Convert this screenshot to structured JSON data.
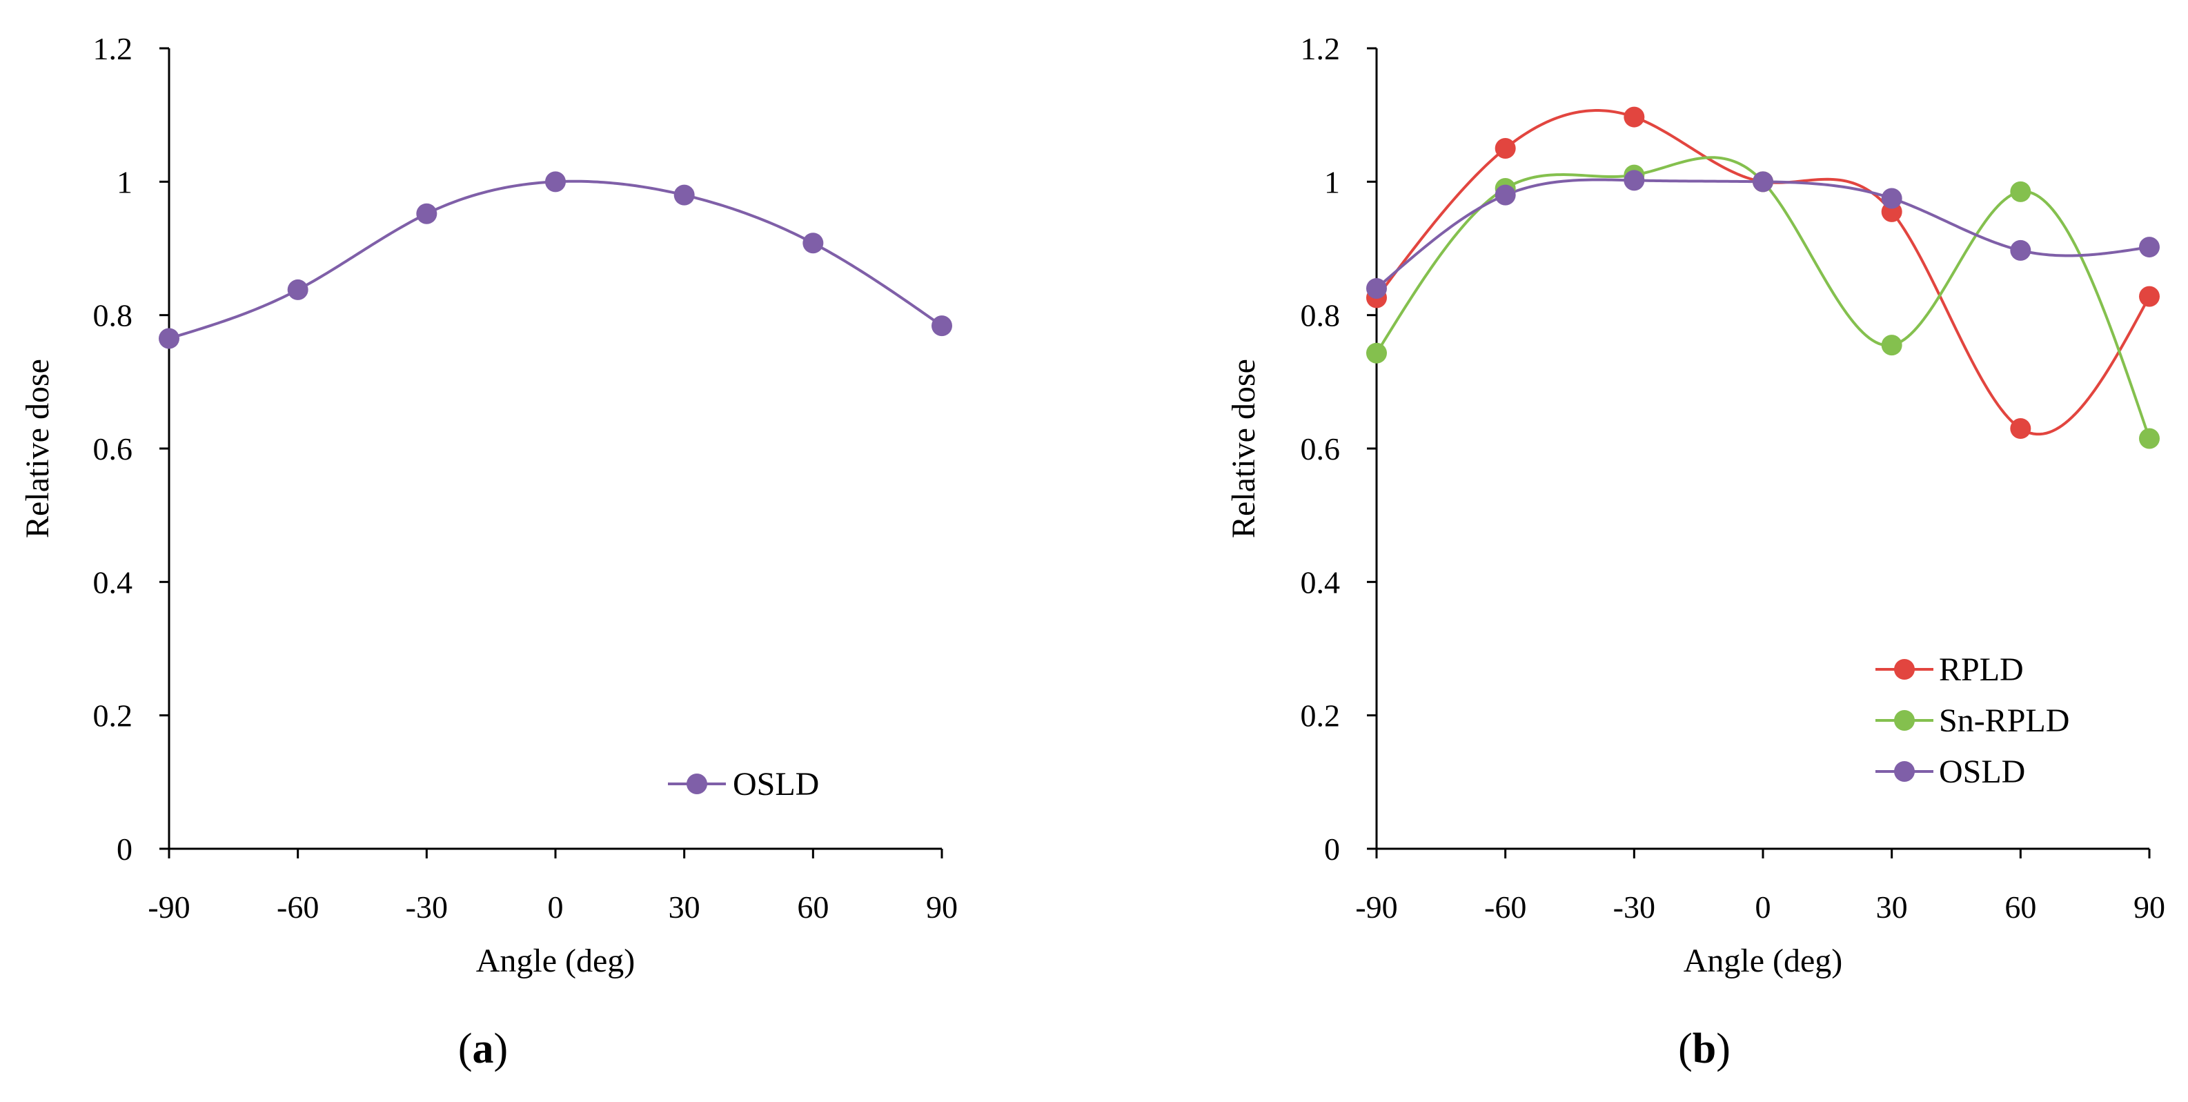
{
  "chart_data": [
    {
      "type": "line",
      "smooth": true,
      "panel_label": {
        "open": "(",
        "letter": "a",
        "close": ")"
      },
      "xlabel": "Angle (deg)",
      "ylabel": "Relative dose",
      "x": [
        -90,
        -60,
        -30,
        0,
        30,
        60,
        90
      ],
      "x_ticks": [
        "-90",
        "-60",
        "-30",
        "0",
        "30",
        "60",
        "90"
      ],
      "y_ticks": [
        "0",
        "0.2",
        "0.4",
        "0.6",
        "0.8",
        "1",
        "1.2"
      ],
      "xlim": [
        -90,
        90
      ],
      "ylim": [
        0,
        1.2
      ],
      "grid": false,
      "legend_position": "bottom-right",
      "series": [
        {
          "name": "OSLD",
          "color": "#7f5fa8",
          "values": [
            0.765,
            0.838,
            0.952,
            1.0,
            0.98,
            0.908,
            0.784
          ]
        }
      ]
    },
    {
      "type": "line",
      "smooth": true,
      "panel_label": {
        "open": "(",
        "letter": "b",
        "close": ")"
      },
      "xlabel": "Angle (deg)",
      "ylabel": "Relative dose",
      "x": [
        -90,
        -60,
        -30,
        0,
        30,
        60,
        90
      ],
      "x_ticks": [
        "-90",
        "-60",
        "-30",
        "0",
        "30",
        "60",
        "90"
      ],
      "y_ticks": [
        "0",
        "0.2",
        "0.4",
        "0.6",
        "0.8",
        "1",
        "1.2"
      ],
      "xlim": [
        -90,
        90
      ],
      "ylim": [
        0,
        1.2
      ],
      "grid": false,
      "legend_position": "bottom-right",
      "series": [
        {
          "name": "RPLD",
          "color": "#e2453f",
          "values": [
            0.826,
            1.05,
            1.097,
            1.0,
            0.955,
            0.63,
            0.828
          ]
        },
        {
          "name": "Sn-RPLD",
          "color": "#84c04e",
          "values": [
            0.743,
            0.99,
            1.01,
            1.0,
            0.755,
            0.985,
            0.615
          ]
        },
        {
          "name": "OSLD",
          "color": "#7f5fa8",
          "values": [
            0.84,
            0.98,
            1.002,
            1.0,
            0.975,
            0.897,
            0.902
          ]
        }
      ]
    }
  ]
}
